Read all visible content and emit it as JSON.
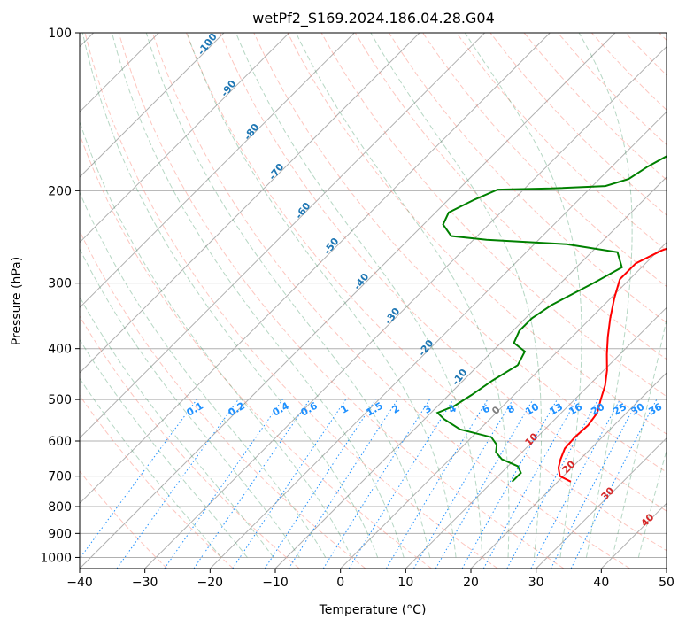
{
  "chart_data": {
    "type": "line",
    "title": "wetPf2_S169.2024.186.04.28.G04",
    "xlabel": "Temperature (°C)",
    "ylabel": "Pressure (hPa)",
    "xlim": [
      -40,
      50
    ],
    "ylim": [
      1050,
      100
    ],
    "y_scale": "log",
    "grid": true,
    "x_ticks": [
      -40,
      -30,
      -20,
      -10,
      0,
      10,
      20,
      30,
      40,
      50
    ],
    "x_tick_labels": [
      "−40",
      "−30",
      "−20",
      "−10",
      "0",
      "10",
      "20",
      "30",
      "40",
      "50"
    ],
    "y_ticks": [
      100,
      200,
      300,
      400,
      500,
      600,
      700,
      800,
      900,
      1000
    ],
    "y_tick_labels": [
      "100",
      "200",
      "300",
      "400",
      "500",
      "600",
      "700",
      "800",
      "900",
      "1000"
    ],
    "series": [
      {
        "color": "#ff0000",
        "points": [
          [
            717,
            22.0
          ],
          [
            700,
            19.5
          ],
          [
            675,
            18.0
          ],
          [
            650,
            17.0
          ],
          [
            620,
            16.0
          ],
          [
            590,
            15.8
          ],
          [
            560,
            16.0
          ],
          [
            530,
            15.5
          ],
          [
            500,
            14.0
          ],
          [
            470,
            12.5
          ],
          [
            440,
            10.5
          ],
          [
            410,
            8.0
          ],
          [
            380,
            5.5
          ],
          [
            350,
            3.0
          ],
          [
            320,
            0.5
          ],
          [
            295,
            -1.5
          ],
          [
            275,
            -1.5
          ],
          [
            260,
            0.5
          ],
          [
            245,
            4.0
          ],
          [
            230,
            7.5
          ],
          [
            215,
            10.0
          ],
          [
            200,
            12.0
          ],
          [
            180,
            14.5
          ],
          [
            160,
            17.5
          ],
          [
            140,
            22.0
          ],
          [
            125,
            25.0
          ],
          [
            112,
            27.0
          ],
          [
            100,
            29.5
          ]
        ]
      },
      {
        "color": "#008000",
        "points": [
          [
            717,
            13.0
          ],
          [
            690,
            13.0
          ],
          [
            670,
            11.5
          ],
          [
            650,
            8.0
          ],
          [
            630,
            6.0
          ],
          [
            610,
            5.0
          ],
          [
            590,
            3.0
          ],
          [
            570,
            -3.0
          ],
          [
            545,
            -7.0
          ],
          [
            530,
            -9.0
          ],
          [
            515,
            -7.5
          ],
          [
            490,
            -6.5
          ],
          [
            460,
            -5.5
          ],
          [
            430,
            -4.0
          ],
          [
            405,
            -5.0
          ],
          [
            390,
            -8.0
          ],
          [
            370,
            -9.0
          ],
          [
            350,
            -9.0
          ],
          [
            330,
            -8.0
          ],
          [
            300,
            -5.0
          ],
          [
            280,
            -3.0
          ],
          [
            262,
            -6.0
          ],
          [
            253,
            -15.0
          ],
          [
            248,
            -28.0
          ],
          [
            244,
            -34.0
          ],
          [
            232,
            -37.0
          ],
          [
            220,
            -38.0
          ],
          [
            208,
            -36.0
          ],
          [
            199,
            -34.0
          ],
          [
            198,
            -26.0
          ],
          [
            196,
            -18.0
          ],
          [
            190,
            -15.5
          ],
          [
            180,
            -14.5
          ],
          [
            165,
            -12.0
          ],
          [
            150,
            -10.0
          ],
          [
            140,
            -7.5
          ],
          [
            130,
            -5.0
          ],
          [
            120,
            -4.0
          ],
          [
            110,
            -4.5
          ],
          [
            103,
            -3.0
          ],
          [
            100,
            -1.0
          ]
        ]
      }
    ],
    "dry_adiabat_labels": [
      "-100",
      "-90",
      "-80",
      "-70",
      "-60",
      "-50",
      "-40",
      "-30",
      "-20",
      "-10"
    ],
    "mixing_ratio_labels": [
      "0.1",
      "0.2",
      "0.4",
      "0.6",
      "1",
      "1.5",
      "2",
      "3",
      "4",
      "6",
      "8",
      "10",
      "13",
      "16",
      "20",
      "25",
      "30",
      "36"
    ],
    "moist_adiabat_labels": [
      "0",
      "10",
      "20",
      "30",
      "40"
    ],
    "colors": {
      "temperature": "#ff0000",
      "dewpoint": "#008000",
      "dry_adiabat": "#fa8072",
      "moist_adiabat": "#2e8b57",
      "mixing_ratio": "#1e90ff",
      "isotherm_label": "#1f77b4",
      "moist_label": "#d62728",
      "grid": "#b0b0b0"
    }
  }
}
